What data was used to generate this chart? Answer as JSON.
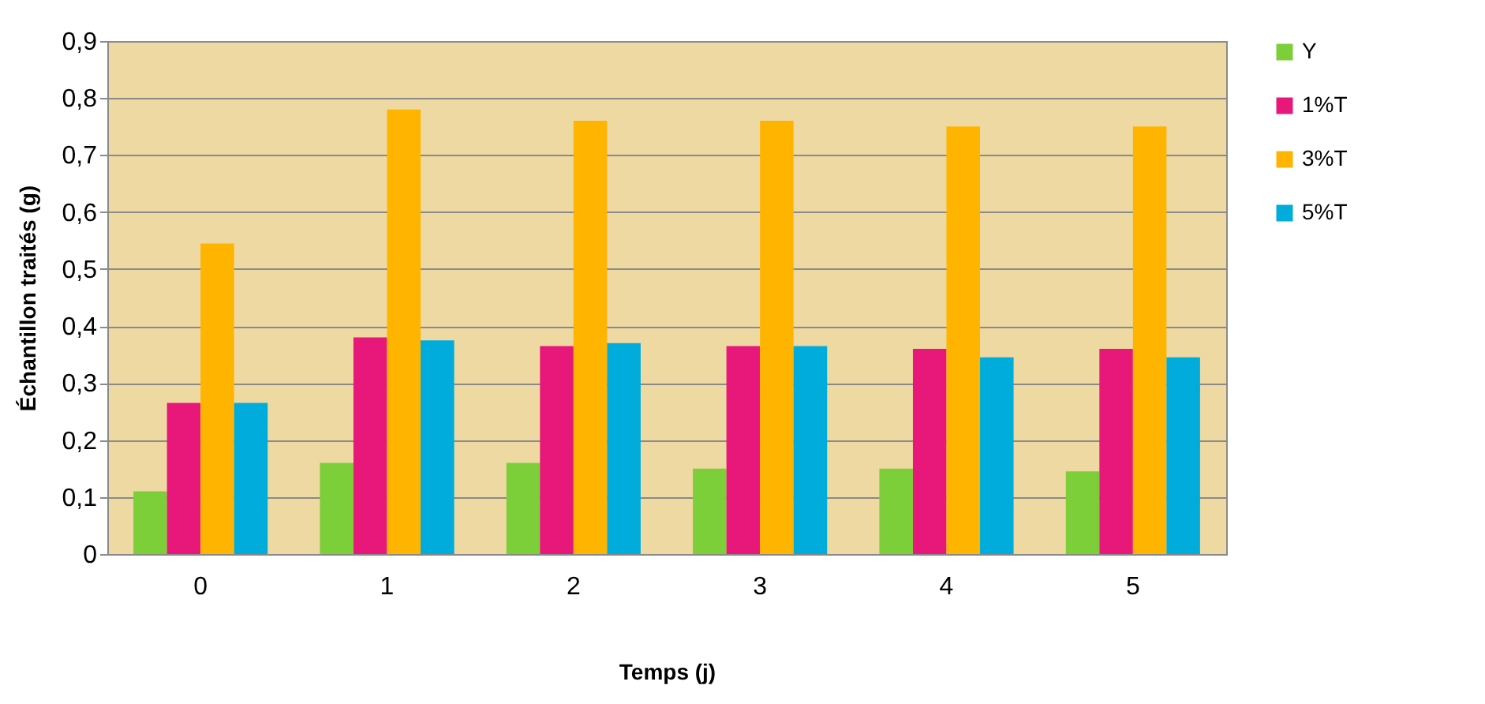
{
  "chart_data": {
    "type": "bar",
    "xlabel": "Temps (j)",
    "ylabel": "Échantillon  traités (g)",
    "categories": [
      "0",
      "1",
      "2",
      "3",
      "4",
      "5"
    ],
    "series": [
      {
        "name": "Y",
        "color": "#7dcf3a",
        "values": [
          0.11,
          0.16,
          0.16,
          0.15,
          0.15,
          0.145
        ]
      },
      {
        "name": "1%T",
        "color": "#e8177a",
        "values": [
          0.265,
          0.38,
          0.365,
          0.365,
          0.36,
          0.36
        ]
      },
      {
        "name": "3%T",
        "color": "#ffb400",
        "values": [
          0.545,
          0.78,
          0.76,
          0.76,
          0.75,
          0.75
        ]
      },
      {
        "name": "5%T",
        "color": "#00acdc",
        "values": [
          0.265,
          0.375,
          0.37,
          0.365,
          0.345,
          0.345
        ]
      }
    ],
    "ylim": [
      0,
      0.9
    ],
    "yticks": [
      0,
      {
        "value": 0.1,
        "label": "0,1"
      },
      {
        "value": 0.2,
        "label": "0,2"
      },
      {
        "value": 0.3,
        "label": "0,3"
      },
      {
        "value": 0.4,
        "label": "0,4"
      },
      {
        "value": 0.5,
        "label": "0,5"
      },
      {
        "value": 0.6,
        "label": "0,6"
      },
      {
        "value": 0.7,
        "label": "0,7"
      },
      {
        "value": 0.8,
        "label": "0,8"
      },
      {
        "value": 0.9,
        "label": "0,9"
      }
    ],
    "grid": "y",
    "legend": "right"
  }
}
